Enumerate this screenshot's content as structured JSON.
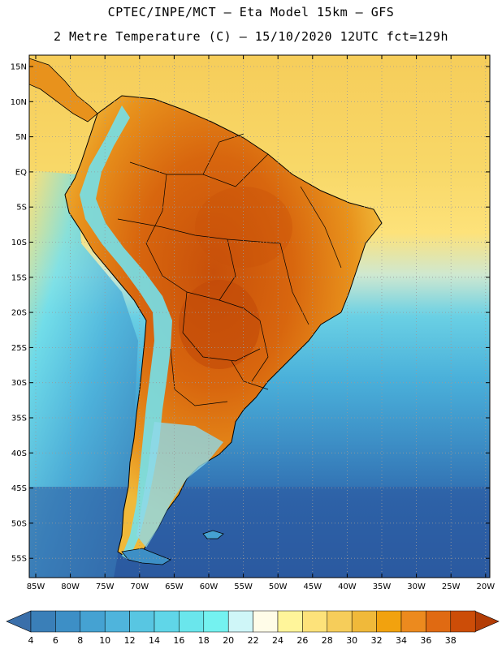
{
  "title": {
    "line1": "CPTEC/INPE/MCT –  Eta Model 15km – GFS",
    "line2": "2 Metre Temperature (C) – 15/10/2020 12UTC fct=129h"
  },
  "lat_labels": [
    "15N",
    "10N",
    "5N",
    "EQ",
    "5S",
    "10S",
    "15S",
    "20S",
    "25S",
    "30S",
    "35S",
    "40S",
    "45S",
    "50S",
    "55S"
  ],
  "lon_labels": [
    "85W",
    "80W",
    "75W",
    "70W",
    "65W",
    "60W",
    "55W",
    "50W",
    "45W",
    "40W",
    "35W",
    "30W",
    "25W",
    "20W"
  ],
  "colorbar": {
    "labels": [
      "4",
      "6",
      "8",
      "10",
      "12",
      "14",
      "16",
      "18",
      "20",
      "22",
      "24",
      "26",
      "28",
      "30",
      "32",
      "34",
      "36",
      "38"
    ],
    "colors": [
      "#3a7fb8",
      "#3d8fc6",
      "#45a2d2",
      "#4fb4dc",
      "#58c6e2",
      "#60d6e8",
      "#6ae6ec",
      "#74f2f0",
      "#cff6f8",
      "#fffce8",
      "#fff59a",
      "#fde27a",
      "#f6cd5a",
      "#f0b93a",
      "#f2a20e",
      "#ec8a1e",
      "#e06a12",
      "#cc4d08"
    ],
    "low_arrow_color": "#3a6faa",
    "high_arrow_color": "#b33d06"
  },
  "palette": {
    "deep_ocean": "#2b5aa0",
    "ocean": "#3d8fc6",
    "coast_ocean": "#58c6e2",
    "tropic_ocean": "#f6cd5a",
    "land_warm": "#e8921c",
    "land_hot": "#d8660e",
    "land_cool": "#f0b93a",
    "andes": "#7ad8e6"
  }
}
